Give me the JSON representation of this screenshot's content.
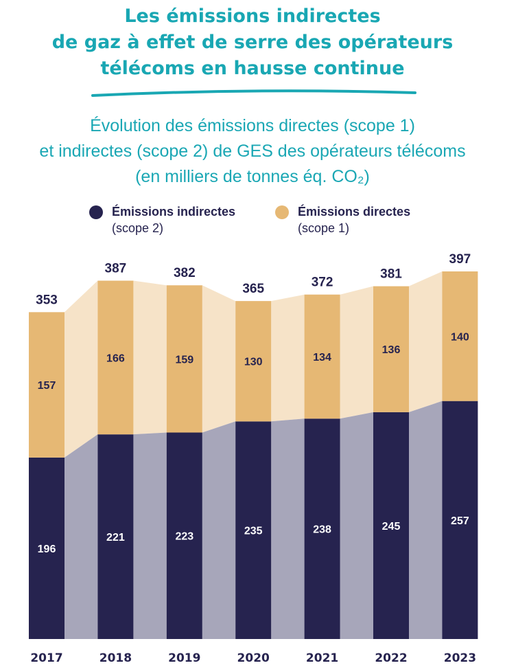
{
  "title": {
    "lines": [
      "Les émissions indirectes",
      "de gaz à effet de serre des opérateurs",
      "télécoms en hausse continue"
    ]
  },
  "colors": {
    "title": "#19a7b3",
    "indirect": "#26234f",
    "direct": "#e6b874",
    "indirect_band": "#a7a6ba",
    "direct_band": "#f6e3c8"
  },
  "chart_data": {
    "type": "bar",
    "stacked": true,
    "title_lines": [
      "Évolution des émissions directes (scope 1)",
      "et indirectes (scope 2) de GES des opérateurs télécoms",
      "(en milliers de tonnes éq. CO₂)"
    ],
    "categories": [
      "2017",
      "2018",
      "2019",
      "2020",
      "2021",
      "2022",
      "2023"
    ],
    "series": [
      {
        "name": "Émissions indirectes",
        "sub": "(scope 2)",
        "values": [
          196,
          221,
          223,
          235,
          238,
          245,
          257
        ]
      },
      {
        "name": "Émissions directes",
        "sub": "(scope 1)",
        "values": [
          157,
          166,
          159,
          130,
          134,
          136,
          140
        ]
      }
    ],
    "totals": [
      353,
      387,
      382,
      365,
      372,
      381,
      397
    ],
    "ylim": [
      0,
      397
    ],
    "legend": "top",
    "grid": false
  }
}
